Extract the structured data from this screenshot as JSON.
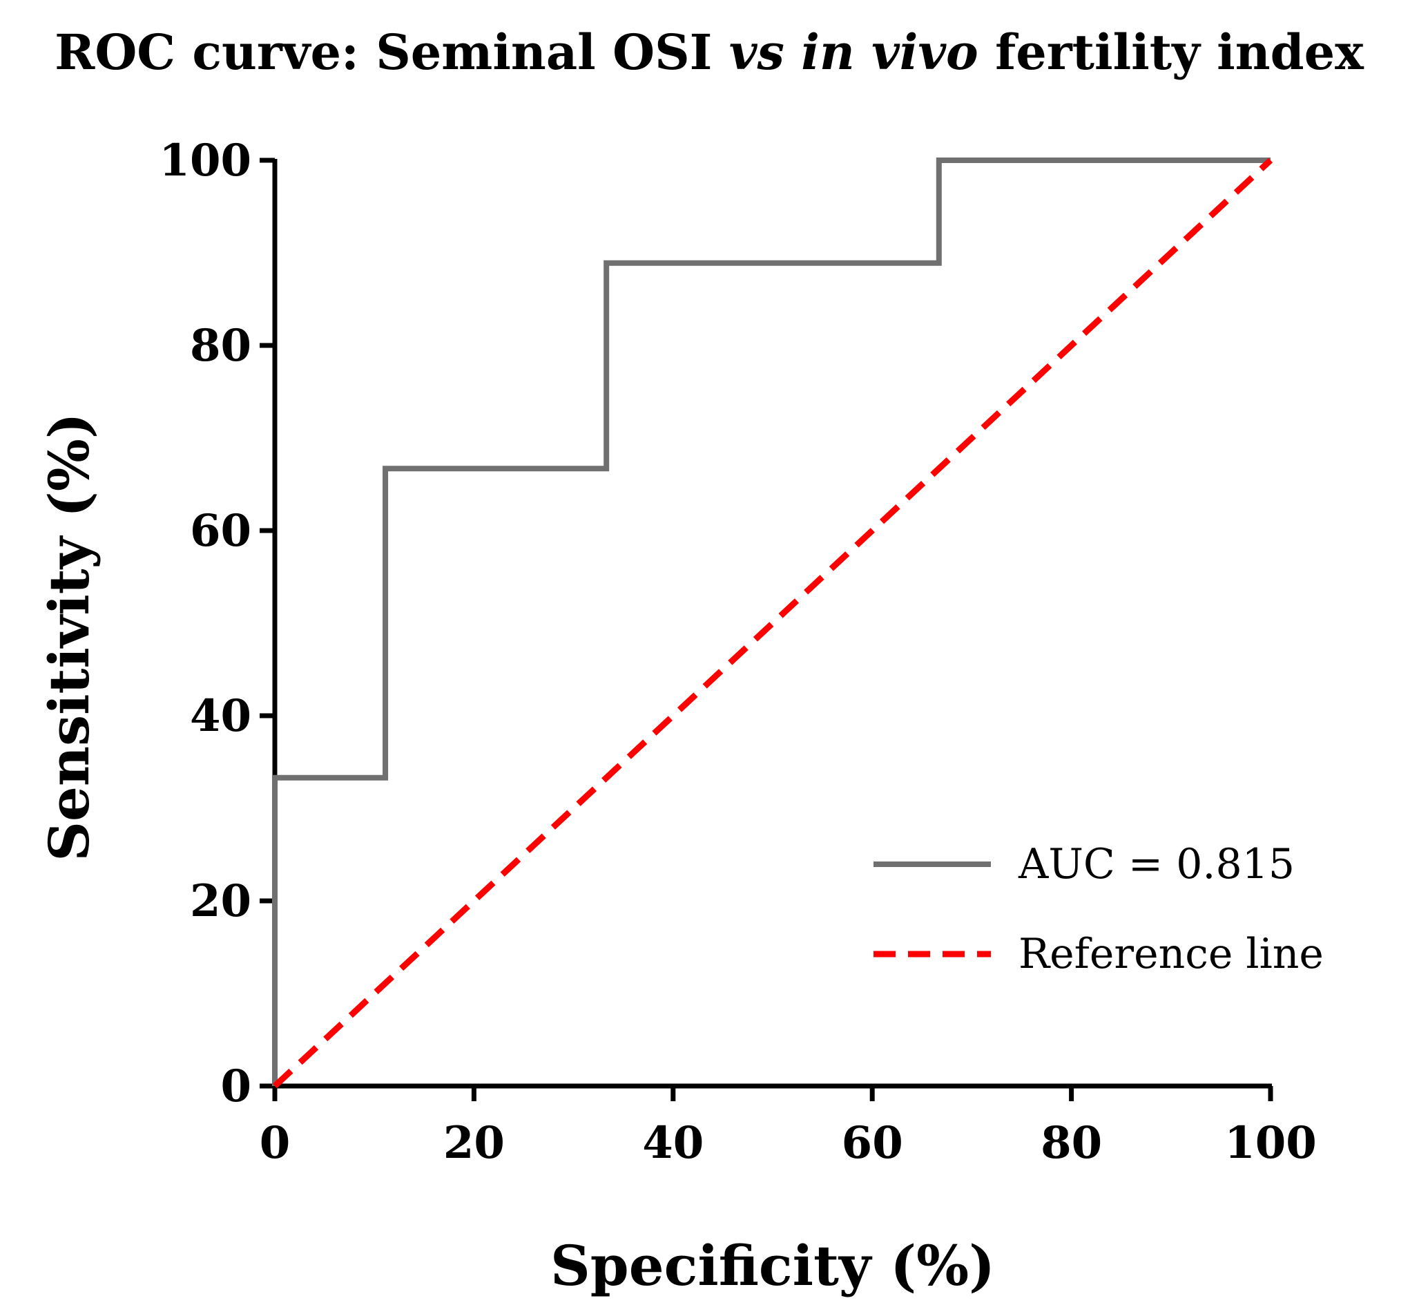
{
  "chart_data": {
    "type": "line",
    "title_parts": [
      {
        "text": "ROC curve: Seminal OSI ",
        "italic": false
      },
      {
        "text": "vs",
        "italic": true
      },
      {
        "text": " ",
        "italic": false
      },
      {
        "text": "in vivo",
        "italic": true
      },
      {
        "text": " fertility index",
        "italic": false
      }
    ],
    "xlabel": "Specificity (%)",
    "ylabel": "Sensitivity (%)",
    "xlim": [
      0,
      100
    ],
    "ylim": [
      0,
      100
    ],
    "xticks": [
      0,
      20,
      40,
      60,
      80,
      100
    ],
    "yticks": [
      0,
      20,
      40,
      60,
      80,
      100
    ],
    "legend_position": "bottom-right",
    "series": [
      {
        "name": "AUC = 0.815",
        "style": "solid-step",
        "color": "#707070",
        "x": [
          0,
          0,
          11.1,
          11.1,
          33.3,
          33.3,
          66.7,
          66.7,
          100
        ],
        "y": [
          0,
          33.3,
          33.3,
          66.7,
          66.7,
          88.9,
          88.9,
          100,
          100
        ]
      },
      {
        "name": "Reference line",
        "style": "dashed",
        "color": "#ff0000",
        "x": [
          0,
          100
        ],
        "y": [
          0,
          100
        ]
      }
    ]
  }
}
